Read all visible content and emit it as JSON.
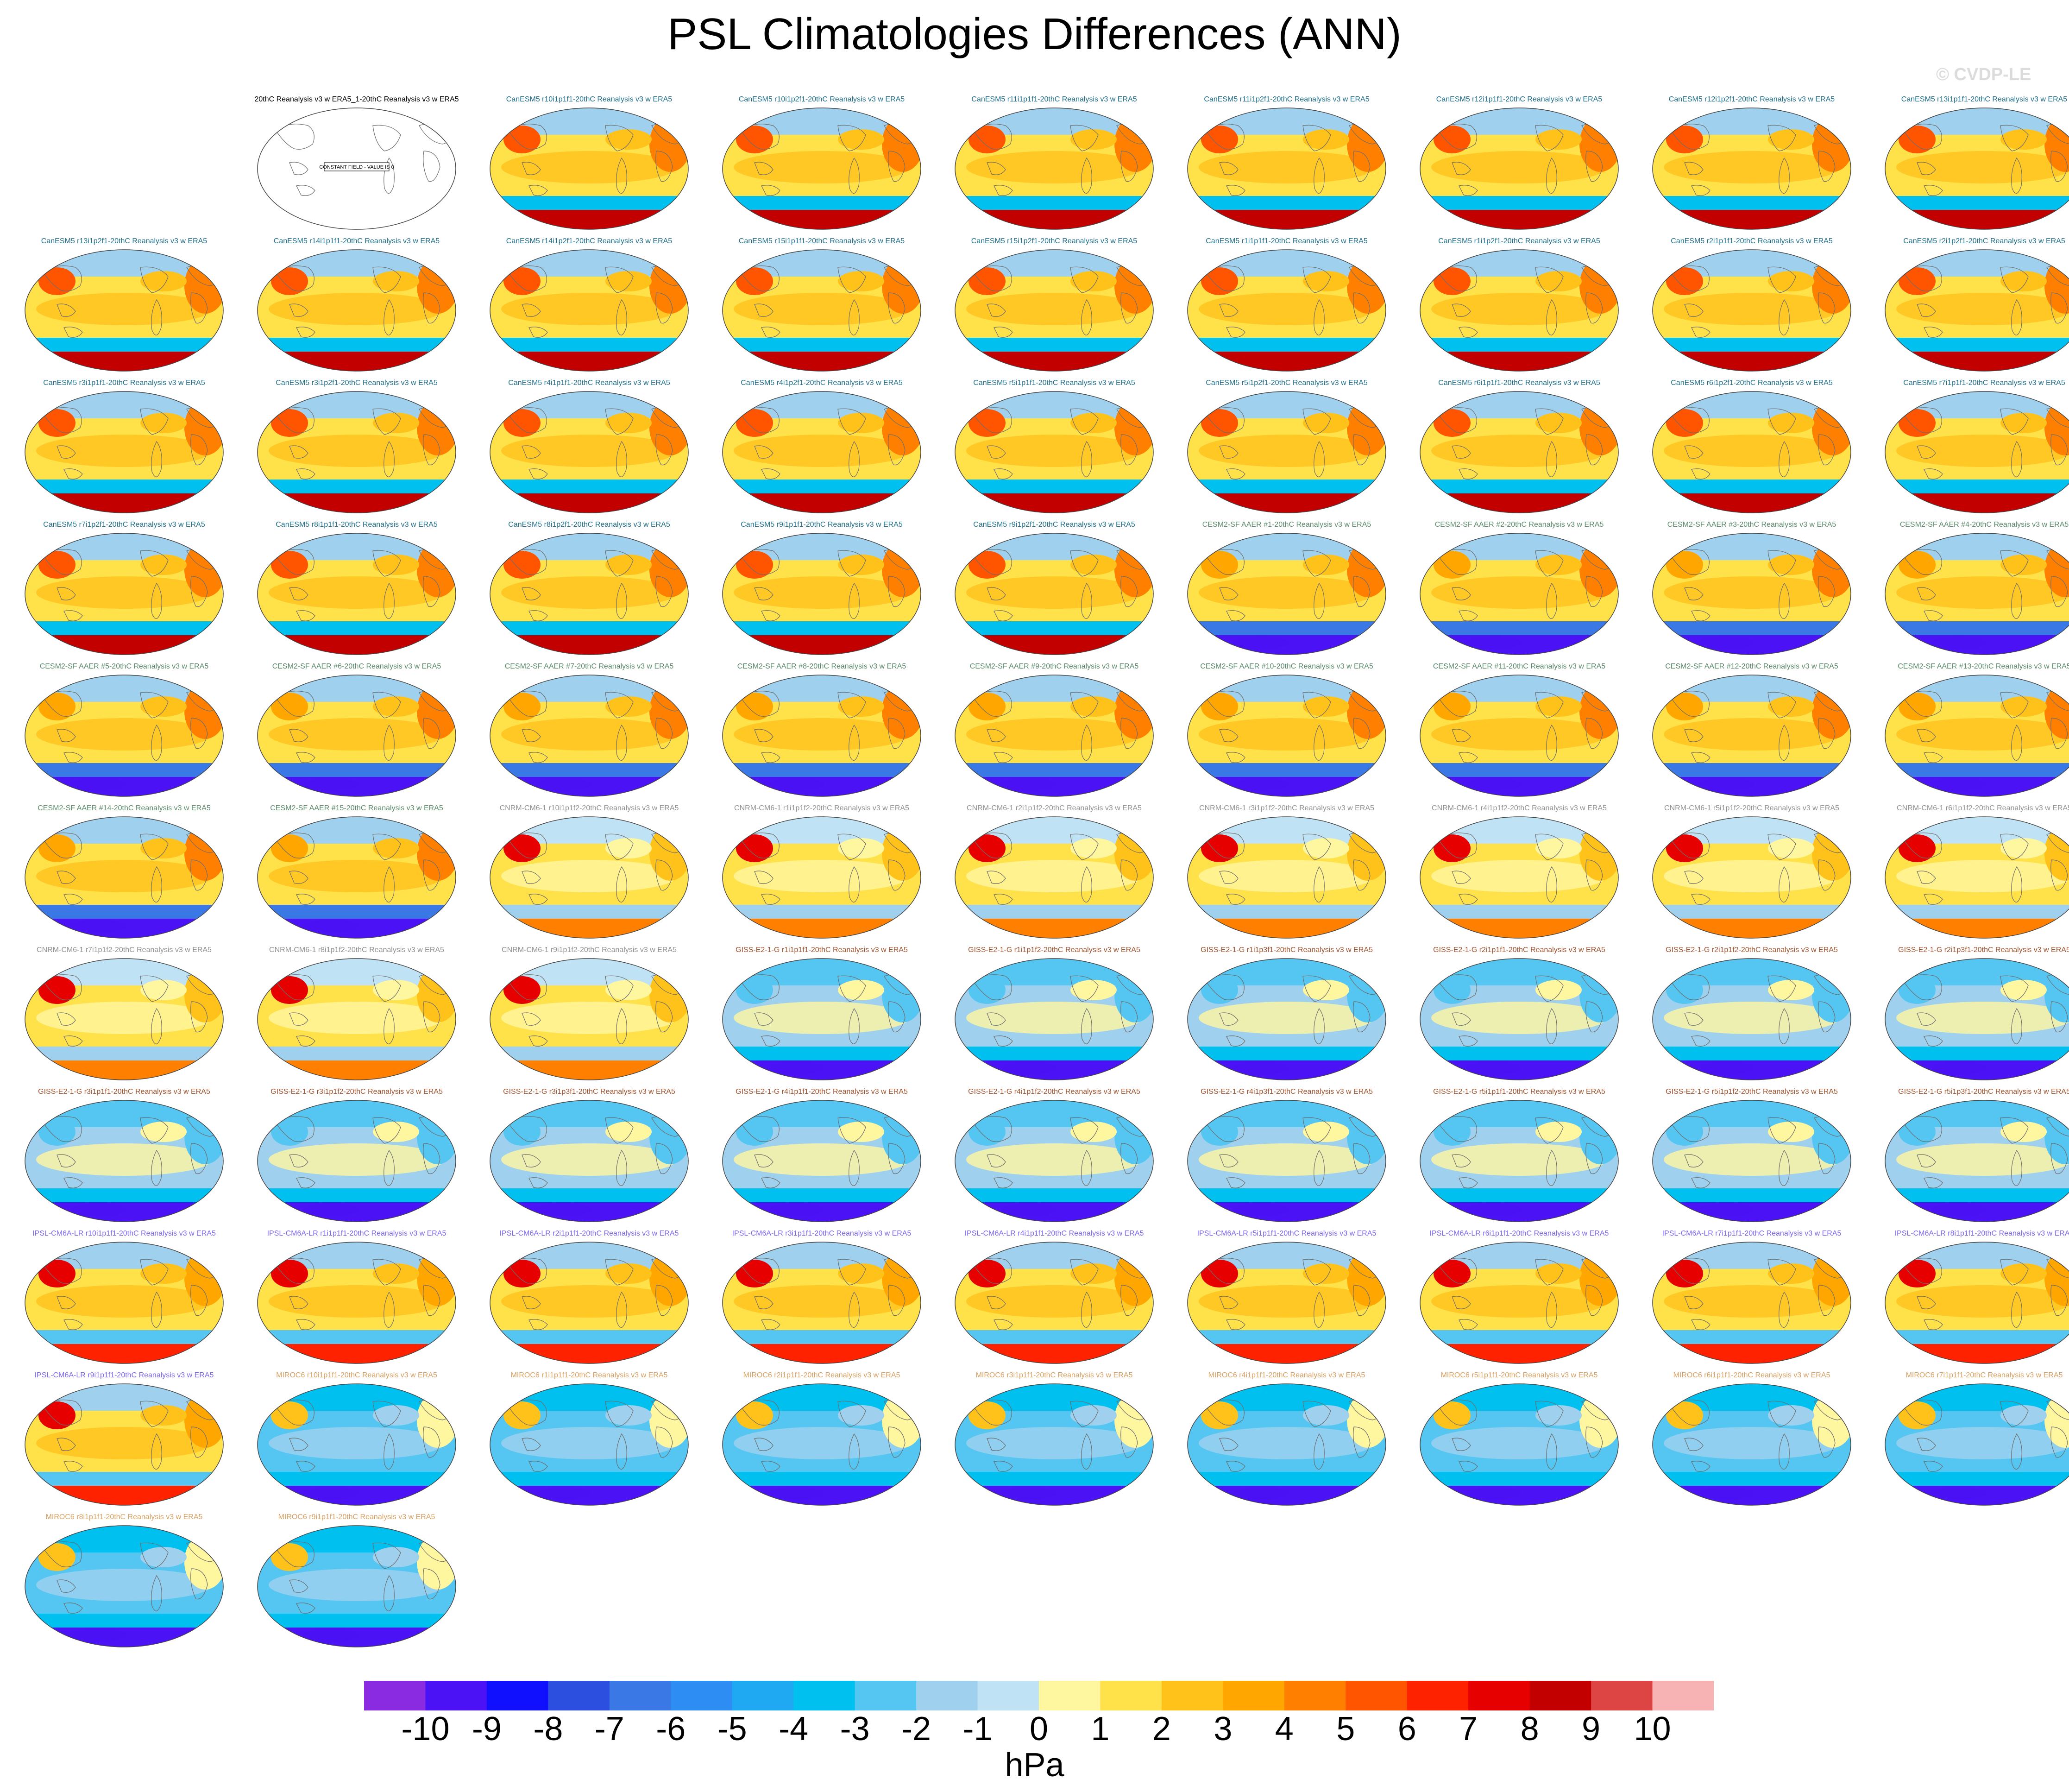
{
  "title": "PSL Climatologies Differences (ANN)",
  "watermark": "© CVDP-LE",
  "chart_data": {
    "type": "heatmap",
    "title": "PSL Climatologies Differences (ANN)",
    "units": "hPa",
    "colorbar_levels": [
      "-10",
      "-9",
      "-8",
      "-7",
      "-6",
      "-5",
      "-4",
      "-3",
      "-2",
      "-1",
      "0",
      "1",
      "2",
      "3",
      "4",
      "5",
      "6",
      "7",
      "8",
      "9",
      "10"
    ],
    "colorbar_colors": [
      "#8a2be2",
      "#4a12f5",
      "#1010ff",
      "#2d4fe0",
      "#3a78e6",
      "#2e8df2",
      "#1fa9f2",
      "#00c0f0",
      "#55c6f2",
      "#9fd1ee",
      "#bfe3f5",
      "#fff6a0",
      "#ffe14a",
      "#ffc21a",
      "#ffa600",
      "#ff8000",
      "#ff5500",
      "#ff2200",
      "#e60000",
      "#c30000",
      "#dd4444",
      "#f7b3b3"
    ],
    "panels": [
      {
        "label": "20thC Reanalysis v3 w ERA5_1-20thC Reanalysis v3 w ERA5",
        "model": "obs",
        "note": "CONSTANT FIELD - VALUE IS 0"
      },
      {
        "label": "CanESM5 r10i1p1f1-20thC Reanalysis v3 w ERA5",
        "model": "canesm5"
      },
      {
        "label": "CanESM5 r10i1p2f1-20thC Reanalysis v3 w ERA5",
        "model": "canesm5"
      },
      {
        "label": "CanESM5 r11i1p1f1-20thC Reanalysis v3 w ERA5",
        "model": "canesm5"
      },
      {
        "label": "CanESM5 r11i1p2f1-20thC Reanalysis v3 w ERA5",
        "model": "canesm5"
      },
      {
        "label": "CanESM5 r12i1p1f1-20thC Reanalysis v3 w ERA5",
        "model": "canesm5"
      },
      {
        "label": "CanESM5 r12i1p2f1-20thC Reanalysis v3 w ERA5",
        "model": "canesm5"
      },
      {
        "label": "CanESM5 r13i1p1f1-20thC Reanalysis v3 w ERA5",
        "model": "canesm5"
      },
      {
        "label": "CanESM5 r13i1p2f1-20thC Reanalysis v3 w ERA5",
        "model": "canesm5"
      },
      {
        "label": "CanESM5 r14i1p1f1-20thC Reanalysis v3 w ERA5",
        "model": "canesm5"
      },
      {
        "label": "CanESM5 r14i1p2f1-20thC Reanalysis v3 w ERA5",
        "model": "canesm5"
      },
      {
        "label": "CanESM5 r15i1p1f1-20thC Reanalysis v3 w ERA5",
        "model": "canesm5"
      },
      {
        "label": "CanESM5 r15i1p2f1-20thC Reanalysis v3 w ERA5",
        "model": "canesm5"
      },
      {
        "label": "CanESM5 r1i1p1f1-20thC Reanalysis v3 w ERA5",
        "model": "canesm5"
      },
      {
        "label": "CanESM5 r1i1p2f1-20thC Reanalysis v3 w ERA5",
        "model": "canesm5"
      },
      {
        "label": "CanESM5 r2i1p1f1-20thC Reanalysis v3 w ERA5",
        "model": "canesm5"
      },
      {
        "label": "CanESM5 r2i1p2f1-20thC Reanalysis v3 w ERA5",
        "model": "canesm5"
      },
      {
        "label": "CanESM5 r3i1p1f1-20thC Reanalysis v3 w ERA5",
        "model": "canesm5"
      },
      {
        "label": "CanESM5 r3i1p2f1-20thC Reanalysis v3 w ERA5",
        "model": "canesm5"
      },
      {
        "label": "CanESM5 r4i1p1f1-20thC Reanalysis v3 w ERA5",
        "model": "canesm5"
      },
      {
        "label": "CanESM5 r4i1p2f1-20thC Reanalysis v3 w ERA5",
        "model": "canesm5"
      },
      {
        "label": "CanESM5 r5i1p1f1-20thC Reanalysis v3 w ERA5",
        "model": "canesm5"
      },
      {
        "label": "CanESM5 r5i1p2f1-20thC Reanalysis v3 w ERA5",
        "model": "canesm5"
      },
      {
        "label": "CanESM5 r6i1p1f1-20thC Reanalysis v3 w ERA5",
        "model": "canesm5"
      },
      {
        "label": "CanESM5 r6i1p2f1-20thC Reanalysis v3 w ERA5",
        "model": "canesm5"
      },
      {
        "label": "CanESM5 r7i1p1f1-20thC Reanalysis v3 w ERA5",
        "model": "canesm5"
      },
      {
        "label": "CanESM5 r7i1p2f1-20thC Reanalysis v3 w ERA5",
        "model": "canesm5"
      },
      {
        "label": "CanESM5 r8i1p1f1-20thC Reanalysis v3 w ERA5",
        "model": "canesm5"
      },
      {
        "label": "CanESM5 r8i1p2f1-20thC Reanalysis v3 w ERA5",
        "model": "canesm5"
      },
      {
        "label": "CanESM5 r9i1p1f1-20thC Reanalysis v3 w ERA5",
        "model": "canesm5"
      },
      {
        "label": "CanESM5 r9i1p2f1-20thC Reanalysis v3 w ERA5",
        "model": "canesm5"
      },
      {
        "label": "CESM2-SF AAER #1-20thC Reanalysis v3 w ERA5",
        "model": "cesm2"
      },
      {
        "label": "CESM2-SF AAER #2-20thC Reanalysis v3 w ERA5",
        "model": "cesm2"
      },
      {
        "label": "CESM2-SF AAER #3-20thC Reanalysis v3 w ERA5",
        "model": "cesm2"
      },
      {
        "label": "CESM2-SF AAER #4-20thC Reanalysis v3 w ERA5",
        "model": "cesm2"
      },
      {
        "label": "CESM2-SF AAER #5-20thC Reanalysis v3 w ERA5",
        "model": "cesm2"
      },
      {
        "label": "CESM2-SF AAER #6-20thC Reanalysis v3 w ERA5",
        "model": "cesm2"
      },
      {
        "label": "CESM2-SF AAER #7-20thC Reanalysis v3 w ERA5",
        "model": "cesm2"
      },
      {
        "label": "CESM2-SF AAER #8-20thC Reanalysis v3 w ERA5",
        "model": "cesm2"
      },
      {
        "label": "CESM2-SF AAER #9-20thC Reanalysis v3 w ERA5",
        "model": "cesm2"
      },
      {
        "label": "CESM2-SF AAER #10-20thC Reanalysis v3 w ERA5",
        "model": "cesm2"
      },
      {
        "label": "CESM2-SF AAER #11-20thC Reanalysis v3 w ERA5",
        "model": "cesm2"
      },
      {
        "label": "CESM2-SF AAER #12-20thC Reanalysis v3 w ERA5",
        "model": "cesm2"
      },
      {
        "label": "CESM2-SF AAER #13-20thC Reanalysis v3 w ERA5",
        "model": "cesm2"
      },
      {
        "label": "CESM2-SF AAER #14-20thC Reanalysis v3 w ERA5",
        "model": "cesm2"
      },
      {
        "label": "CESM2-SF AAER #15-20thC Reanalysis v3 w ERA5",
        "model": "cesm2"
      },
      {
        "label": "CNRM-CM6-1 r10i1p1f2-20thC Reanalysis v3 w ERA5",
        "model": "cnrm"
      },
      {
        "label": "CNRM-CM6-1 r1i1p1f2-20thC Reanalysis v3 w ERA5",
        "model": "cnrm"
      },
      {
        "label": "CNRM-CM6-1 r2i1p1f2-20thC Reanalysis v3 w ERA5",
        "model": "cnrm"
      },
      {
        "label": "CNRM-CM6-1 r3i1p1f2-20thC Reanalysis v3 w ERA5",
        "model": "cnrm"
      },
      {
        "label": "CNRM-CM6-1 r4i1p1f2-20thC Reanalysis v3 w ERA5",
        "model": "cnrm"
      },
      {
        "label": "CNRM-CM6-1 r5i1p1f2-20thC Reanalysis v3 w ERA5",
        "model": "cnrm"
      },
      {
        "label": "CNRM-CM6-1 r6i1p1f2-20thC Reanalysis v3 w ERA5",
        "model": "cnrm"
      },
      {
        "label": "CNRM-CM6-1 r7i1p1f2-20thC Reanalysis v3 w ERA5",
        "model": "cnrm"
      },
      {
        "label": "CNRM-CM6-1 r8i1p1f2-20thC Reanalysis v3 w ERA5",
        "model": "cnrm"
      },
      {
        "label": "CNRM-CM6-1 r9i1p1f2-20thC Reanalysis v3 w ERA5",
        "model": "cnrm"
      },
      {
        "label": "GISS-E2-1-G r1i1p1f1-20thC Reanalysis v3 w ERA5",
        "model": "giss"
      },
      {
        "label": "GISS-E2-1-G r1i1p1f2-20thC Reanalysis v3 w ERA5",
        "model": "giss"
      },
      {
        "label": "GISS-E2-1-G r1i1p3f1-20thC Reanalysis v3 w ERA5",
        "model": "giss"
      },
      {
        "label": "GISS-E2-1-G r2i1p1f1-20thC Reanalysis v3 w ERA5",
        "model": "giss"
      },
      {
        "label": "GISS-E2-1-G r2i1p1f2-20thC Reanalysis v3 w ERA5",
        "model": "giss"
      },
      {
        "label": "GISS-E2-1-G r2i1p3f1-20thC Reanalysis v3 w ERA5",
        "model": "giss"
      },
      {
        "label": "GISS-E2-1-G r3i1p1f1-20thC Reanalysis v3 w ERA5",
        "model": "giss"
      },
      {
        "label": "GISS-E2-1-G r3i1p1f2-20thC Reanalysis v3 w ERA5",
        "model": "giss"
      },
      {
        "label": "GISS-E2-1-G r3i1p3f1-20thC Reanalysis v3 w ERA5",
        "model": "giss"
      },
      {
        "label": "GISS-E2-1-G r4i1p1f1-20thC Reanalysis v3 w ERA5",
        "model": "giss"
      },
      {
        "label": "GISS-E2-1-G r4i1p1f2-20thC Reanalysis v3 w ERA5",
        "model": "giss"
      },
      {
        "label": "GISS-E2-1-G r4i1p3f1-20thC Reanalysis v3 w ERA5",
        "model": "giss"
      },
      {
        "label": "GISS-E2-1-G r5i1p1f1-20thC Reanalysis v3 w ERA5",
        "model": "giss"
      },
      {
        "label": "GISS-E2-1-G r5i1p1f2-20thC Reanalysis v3 w ERA5",
        "model": "giss"
      },
      {
        "label": "GISS-E2-1-G r5i1p3f1-20thC Reanalysis v3 w ERA5",
        "model": "giss"
      },
      {
        "label": "IPSL-CM6A-LR r10i1p1f1-20thC Reanalysis v3 w ERA5",
        "model": "ipsl"
      },
      {
        "label": "IPSL-CM6A-LR r1i1p1f1-20thC Reanalysis v3 w ERA5",
        "model": "ipsl"
      },
      {
        "label": "IPSL-CM6A-LR r2i1p1f1-20thC Reanalysis v3 w ERA5",
        "model": "ipsl"
      },
      {
        "label": "IPSL-CM6A-LR r3i1p1f1-20thC Reanalysis v3 w ERA5",
        "model": "ipsl"
      },
      {
        "label": "IPSL-CM6A-LR r4i1p1f1-20thC Reanalysis v3 w ERA5",
        "model": "ipsl"
      },
      {
        "label": "IPSL-CM6A-LR r5i1p1f1-20thC Reanalysis v3 w ERA5",
        "model": "ipsl"
      },
      {
        "label": "IPSL-CM6A-LR r6i1p1f1-20thC Reanalysis v3 w ERA5",
        "model": "ipsl"
      },
      {
        "label": "IPSL-CM6A-LR r7i1p1f1-20thC Reanalysis v3 w ERA5",
        "model": "ipsl"
      },
      {
        "label": "IPSL-CM6A-LR r8i1p1f1-20thC Reanalysis v3 w ERA5",
        "model": "ipsl"
      },
      {
        "label": "IPSL-CM6A-LR r9i1p1f1-20thC Reanalysis v3 w ERA5",
        "model": "ipsl"
      },
      {
        "label": "MIROC6 r10i1p1f1-20thC Reanalysis v3 w ERA5",
        "model": "miroc"
      },
      {
        "label": "MIROC6 r1i1p1f1-20thC Reanalysis v3 w ERA5",
        "model": "miroc"
      },
      {
        "label": "MIROC6 r2i1p1f1-20thC Reanalysis v3 w ERA5",
        "model": "miroc"
      },
      {
        "label": "MIROC6 r3i1p1f1-20thC Reanalysis v3 w ERA5",
        "model": "miroc"
      },
      {
        "label": "MIROC6 r4i1p1f1-20thC Reanalysis v3 w ERA5",
        "model": "miroc"
      },
      {
        "label": "MIROC6 r5i1p1f1-20thC Reanalysis v3 w ERA5",
        "model": "miroc"
      },
      {
        "label": "MIROC6 r6i1p1f1-20thC Reanalysis v3 w ERA5",
        "model": "miroc"
      },
      {
        "label": "MIROC6 r7i1p1f1-20thC Reanalysis v3 w ERA5",
        "model": "miroc"
      },
      {
        "label": "MIROC6 r8i1p1f1-20thC Reanalysis v3 w ERA5",
        "model": "miroc"
      },
      {
        "label": "MIROC6 r9i1p1f1-20thC Reanalysis v3 w ERA5",
        "model": "miroc"
      }
    ],
    "model_colors": {
      "obs": "#000000",
      "canesm5": "#1f6f8b",
      "cesm2": "#5a8a6a",
      "cnrm": "#909090",
      "giss": "#a0522d",
      "ipsl": "#7b68ee",
      "miroc": "#d8a060"
    }
  }
}
